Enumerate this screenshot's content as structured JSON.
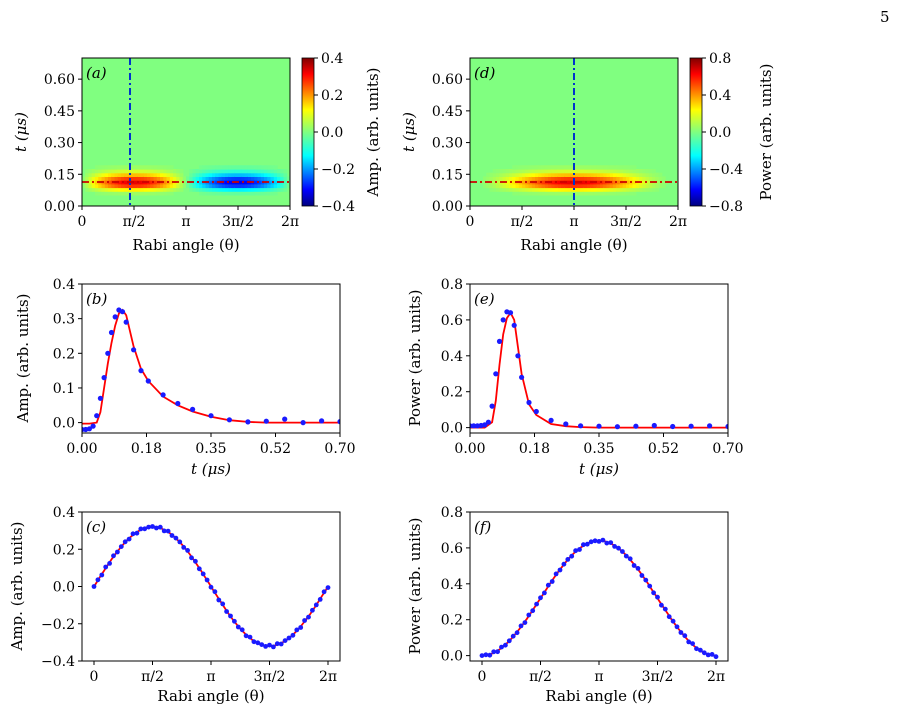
{
  "page_number": "5",
  "colors": {
    "fit_line": "#ff0000",
    "data_dots": "#1a1aff",
    "cut_line_vertical": "#0033cc",
    "cut_line_horizontal": "#cc0000"
  },
  "colormap": "jet",
  "chart_data": [
    {
      "type": "heatmap",
      "panel_label": "(a)",
      "xlabel": "Rabi angle (θ)",
      "ylabel": "t (μs)",
      "x_ticks": [
        "0",
        "π/2",
        "π",
        "3π/2",
        "2π"
      ],
      "y_ticks": [
        "0.00",
        "0.15",
        "0.30",
        "0.45",
        "0.60"
      ],
      "ylim": [
        0,
        0.7
      ],
      "colorbar_label": "Amp. (arb. units)",
      "colorbar_ticks": [
        "0.4",
        "0.2",
        "0.0",
        "−0.2",
        "−0.4"
      ],
      "colorbar_range": [
        -0.4,
        0.4
      ],
      "vertical_cut_x": "π/2",
      "horizontal_cut_t": 0.11
    },
    {
      "type": "heatmap",
      "panel_label": "(d)",
      "xlabel": "Rabi angle (θ)",
      "ylabel": "t (μs)",
      "x_ticks": [
        "0",
        "π/2",
        "π",
        "3π/2",
        "2π"
      ],
      "y_ticks": [
        "0.00",
        "0.15",
        "0.30",
        "0.45",
        "0.60"
      ],
      "ylim": [
        0,
        0.7
      ],
      "colorbar_label": "Power (arb. units)",
      "colorbar_ticks": [
        "0.8",
        "0.4",
        "0.0",
        "−0.4",
        "−0.8"
      ],
      "colorbar_range": [
        -0.8,
        0.8
      ],
      "vertical_cut_x": "π",
      "horizontal_cut_t": 0.11
    },
    {
      "type": "line",
      "panel_label": "(b)",
      "xlabel": "t (μs)",
      "ylabel": "Amp. (arb. units)",
      "x_ticks": [
        "0.00",
        "0.18",
        "0.35",
        "0.52",
        "0.70"
      ],
      "y_ticks": [
        "0.4",
        "0.3",
        "0.2",
        "0.1",
        "0.0"
      ],
      "xlim": [
        0,
        0.7
      ],
      "ylim": [
        -0.03,
        0.4
      ],
      "peak": {
        "t": 0.11,
        "value": 0.325
      },
      "series": [
        {
          "kind": "data",
          "t": [
            0.0,
            0.01,
            0.02,
            0.03,
            0.04,
            0.05,
            0.06,
            0.07,
            0.08,
            0.09,
            0.1,
            0.11,
            0.12,
            0.14,
            0.16,
            0.18,
            0.22,
            0.26,
            0.3,
            0.35,
            0.4,
            0.45,
            0.5,
            0.55,
            0.6,
            0.65,
            0.7
          ],
          "values": [
            -0.02,
            -0.02,
            -0.018,
            -0.01,
            0.02,
            0.07,
            0.13,
            0.2,
            0.26,
            0.305,
            0.325,
            0.32,
            0.29,
            0.21,
            0.15,
            0.12,
            0.08,
            0.055,
            0.038,
            0.02,
            0.008,
            0.002,
            0.004,
            0.01,
            0.0,
            0.005,
            0.003
          ]
        },
        {
          "kind": "fit",
          "t": [
            0.0,
            0.02,
            0.04,
            0.05,
            0.06,
            0.07,
            0.08,
            0.09,
            0.1,
            0.11,
            0.12,
            0.14,
            0.16,
            0.18,
            0.22,
            0.26,
            0.3,
            0.35,
            0.4,
            0.45,
            0.5,
            0.55,
            0.6,
            0.65,
            0.7
          ],
          "values": [
            -0.003,
            -0.003,
            0.0,
            0.03,
            0.1,
            0.17,
            0.23,
            0.28,
            0.315,
            0.325,
            0.31,
            0.22,
            0.155,
            0.12,
            0.075,
            0.05,
            0.032,
            0.017,
            0.007,
            0.002,
            0.0,
            0.0,
            0.0,
            0.0,
            0.0
          ]
        }
      ]
    },
    {
      "type": "line",
      "panel_label": "(e)",
      "xlabel": "t (μs)",
      "ylabel": "Power (arb. units)",
      "x_ticks": [
        "0.00",
        "0.18",
        "0.35",
        "0.52",
        "0.70"
      ],
      "y_ticks": [
        "0.8",
        "0.6",
        "0.4",
        "0.2",
        "0.0"
      ],
      "xlim": [
        0,
        0.7
      ],
      "ylim": [
        -0.03,
        0.8
      ],
      "peak": {
        "t": 0.12,
        "value": 0.64
      },
      "series": [
        {
          "kind": "data",
          "t": [
            0.0,
            0.01,
            0.02,
            0.03,
            0.04,
            0.05,
            0.06,
            0.07,
            0.08,
            0.09,
            0.1,
            0.11,
            0.12,
            0.13,
            0.14,
            0.16,
            0.18,
            0.22,
            0.26,
            0.3,
            0.35,
            0.4,
            0.45,
            0.5,
            0.55,
            0.6,
            0.65,
            0.7
          ],
          "values": [
            0.01,
            0.01,
            0.01,
            0.012,
            0.015,
            0.03,
            0.12,
            0.3,
            0.48,
            0.6,
            0.645,
            0.64,
            0.57,
            0.4,
            0.28,
            0.14,
            0.09,
            0.04,
            0.02,
            0.01,
            0.008,
            0.005,
            0.008,
            0.012,
            0.006,
            0.008,
            0.01,
            0.006
          ]
        },
        {
          "kind": "fit",
          "t": [
            0.0,
            0.04,
            0.06,
            0.07,
            0.08,
            0.09,
            0.1,
            0.11,
            0.12,
            0.13,
            0.14,
            0.16,
            0.18,
            0.22,
            0.26,
            0.3,
            0.35,
            0.4,
            0.45,
            0.5,
            0.55,
            0.6,
            0.65,
            0.7
          ],
          "values": [
            0.0,
            0.0,
            0.03,
            0.15,
            0.35,
            0.52,
            0.61,
            0.64,
            0.6,
            0.45,
            0.3,
            0.13,
            0.07,
            0.02,
            0.008,
            0.003,
            0.0,
            0.0,
            0.0,
            0.0,
            0.0,
            0.0,
            0.0,
            0.0
          ]
        }
      ]
    },
    {
      "type": "line",
      "panel_label": "(c)",
      "xlabel": "Rabi angle (θ)",
      "ylabel": "Amp. (arb. units)",
      "x_ticks": [
        "0",
        "π/2",
        "π",
        "3π/2",
        "2π"
      ],
      "y_ticks": [
        "0.4",
        "0.2",
        "0.0",
        "−0.2",
        "−0.4"
      ],
      "ylim": [
        -0.4,
        0.4
      ],
      "amplitude": 0.32,
      "series": [
        {
          "kind": "data",
          "function": "0.32·sin(θ)"
        },
        {
          "kind": "fit",
          "function": "0.32·sin(θ)"
        }
      ]
    },
    {
      "type": "line",
      "panel_label": "(f)",
      "xlabel": "Rabi angle (θ)",
      "ylabel": "Power (arb. units)",
      "x_ticks": [
        "0",
        "π/2",
        "π",
        "3π/2",
        "2π"
      ],
      "y_ticks": [
        "0.8",
        "0.6",
        "0.4",
        "0.2",
        "0.0"
      ],
      "ylim": [
        -0.03,
        0.8
      ],
      "amplitude": 0.64,
      "series": [
        {
          "kind": "data",
          "function": "0.64·sin²(θ/2)"
        },
        {
          "kind": "fit",
          "function": "0.64·sin²(θ/2)"
        }
      ]
    }
  ]
}
